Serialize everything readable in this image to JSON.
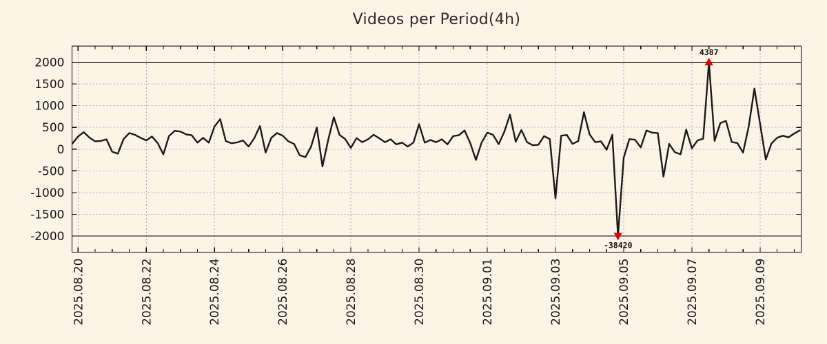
{
  "page": {
    "background": "#fdf4e8"
  },
  "chart_data": {
    "type": "line",
    "title": "Videos per Period(4h)",
    "series_name": "videos-per-4h-period",
    "x_start": "2025-08-19 20:00",
    "interval_hours": 4,
    "x_ticks": [
      {
        "index": 1,
        "label": "2025.08.20"
      },
      {
        "index": 13,
        "label": "2025.08.22"
      },
      {
        "index": 25,
        "label": "2025.08.24"
      },
      {
        "index": 37,
        "label": "2025.08.26"
      },
      {
        "index": 49,
        "label": "2025.08.28"
      },
      {
        "index": 61,
        "label": "2025.08.30"
      },
      {
        "index": 73,
        "label": "2025.09.01"
      },
      {
        "index": 85,
        "label": "2025.09.03"
      },
      {
        "index": 97,
        "label": "2025.09.05"
      },
      {
        "index": 109,
        "label": "2025.09.07"
      },
      {
        "index": 121,
        "label": "2025.09.09"
      }
    ],
    "y_ticks": [
      2000,
      1500,
      1000,
      500,
      0,
      -500,
      -1000,
      -1500,
      -2000
    ],
    "clip_min": -2000,
    "clip_max": 2000,
    "ylim": [
      -2370,
      2370
    ],
    "values": [
      130,
      290,
      390,
      265,
      180,
      190,
      225,
      -60,
      -105,
      230,
      370,
      330,
      260,
      200,
      290,
      140,
      -120,
      300,
      420,
      405,
      340,
      320,
      150,
      260,
      150,
      520,
      690,
      185,
      135,
      155,
      200,
      60,
      250,
      530,
      -80,
      260,
      370,
      310,
      180,
      120,
      -140,
      -185,
      60,
      500,
      -400,
      210,
      735,
      330,
      230,
      30,
      255,
      160,
      225,
      330,
      250,
      160,
      225,
      110,
      150,
      60,
      150,
      575,
      150,
      210,
      160,
      225,
      110,
      300,
      320,
      430,
      140,
      -250,
      150,
      380,
      330,
      115,
      400,
      795,
      170,
      440,
      160,
      90,
      100,
      300,
      230,
      -1135,
      310,
      325,
      120,
      185,
      850,
      340,
      160,
      180,
      -15,
      330,
      -38420,
      -200,
      230,
      215,
      40,
      430,
      380,
      370,
      -635,
      120,
      -70,
      -120,
      450,
      20,
      200,
      240,
      4387,
      190,
      600,
      650,
      165,
      140,
      -80,
      520,
      1395,
      580,
      -240,
      130,
      260,
      310,
      270,
      360,
      430
    ],
    "annotations": {
      "max": {
        "label": "4387",
        "value": 4387,
        "index": 112
      },
      "min": {
        "label": "-38420",
        "value": -38420,
        "index": 96
      }
    },
    "colors": {
      "line": "#1a1a1a",
      "marker": "#dd0000",
      "grid": "#a8a8a8",
      "axis": "#000000",
      "background": "#fdf4e8"
    },
    "layout": {
      "grid": "dotted",
      "x_minor_tick_hours": 12,
      "legend": false,
      "x_labels_rotated_deg": -90
    }
  }
}
